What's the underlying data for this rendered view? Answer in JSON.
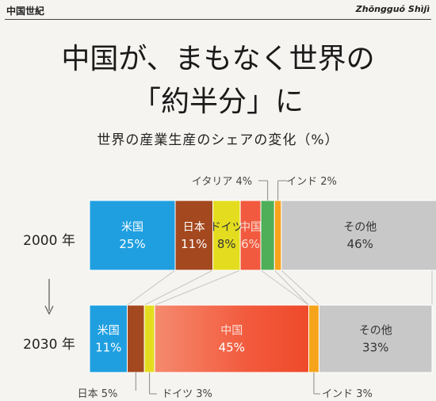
{
  "header": {
    "left": "中国世紀",
    "right": "Zhōngguó Shìjì"
  },
  "title_line1": "中国が、まもなく世界の",
  "title_line2": "「約半分」に",
  "subtitle": "世界の産業生産のシェアの変化（%）",
  "colors": {
    "米国": "#1f9fe0",
    "日本": "#a4481f",
    "ドイツ": "#e4dd1f",
    "中国": "#f15a3e",
    "イタリア": "#4fae58",
    "インド": "#f6a41c",
    "その他": "#c8c8c8"
  },
  "chart_data": {
    "type": "bar",
    "orientation": "horizontal-stacked-100",
    "categories": [
      "2000 年",
      "2030 年"
    ],
    "series": [
      {
        "name": "米国",
        "values": [
          25,
          11
        ],
        "labels": [
          "25%",
          "11%"
        ]
      },
      {
        "name": "日本",
        "values": [
          11,
          5
        ],
        "labels": [
          "11%",
          "5%"
        ]
      },
      {
        "name": "ドイツ",
        "values": [
          8,
          3
        ],
        "labels": [
          "8%",
          "3%"
        ]
      },
      {
        "name": "中国",
        "values": [
          6,
          45
        ],
        "labels": [
          "6%",
          "45%"
        ]
      },
      {
        "name": "イタリア",
        "values": [
          4,
          0
        ],
        "labels": [
          "4%",
          ""
        ]
      },
      {
        "name": "インド",
        "values": [
          2,
          3
        ],
        "labels": [
          "2%",
          "3%"
        ]
      },
      {
        "name": "その他",
        "values": [
          46,
          33
        ],
        "labels": [
          "46%",
          "33%"
        ]
      }
    ],
    "callouts_top": [
      {
        "text": "イタリア 4%",
        "series": "イタリア"
      },
      {
        "text": "インド 2%",
        "series": "インド"
      }
    ],
    "callouts_bottom": [
      {
        "text": "日本 5%",
        "series": "日本"
      },
      {
        "text": "ドイツ 3%",
        "series": "ドイツ"
      },
      {
        "text": "インド 3%",
        "series": "インド"
      }
    ]
  }
}
